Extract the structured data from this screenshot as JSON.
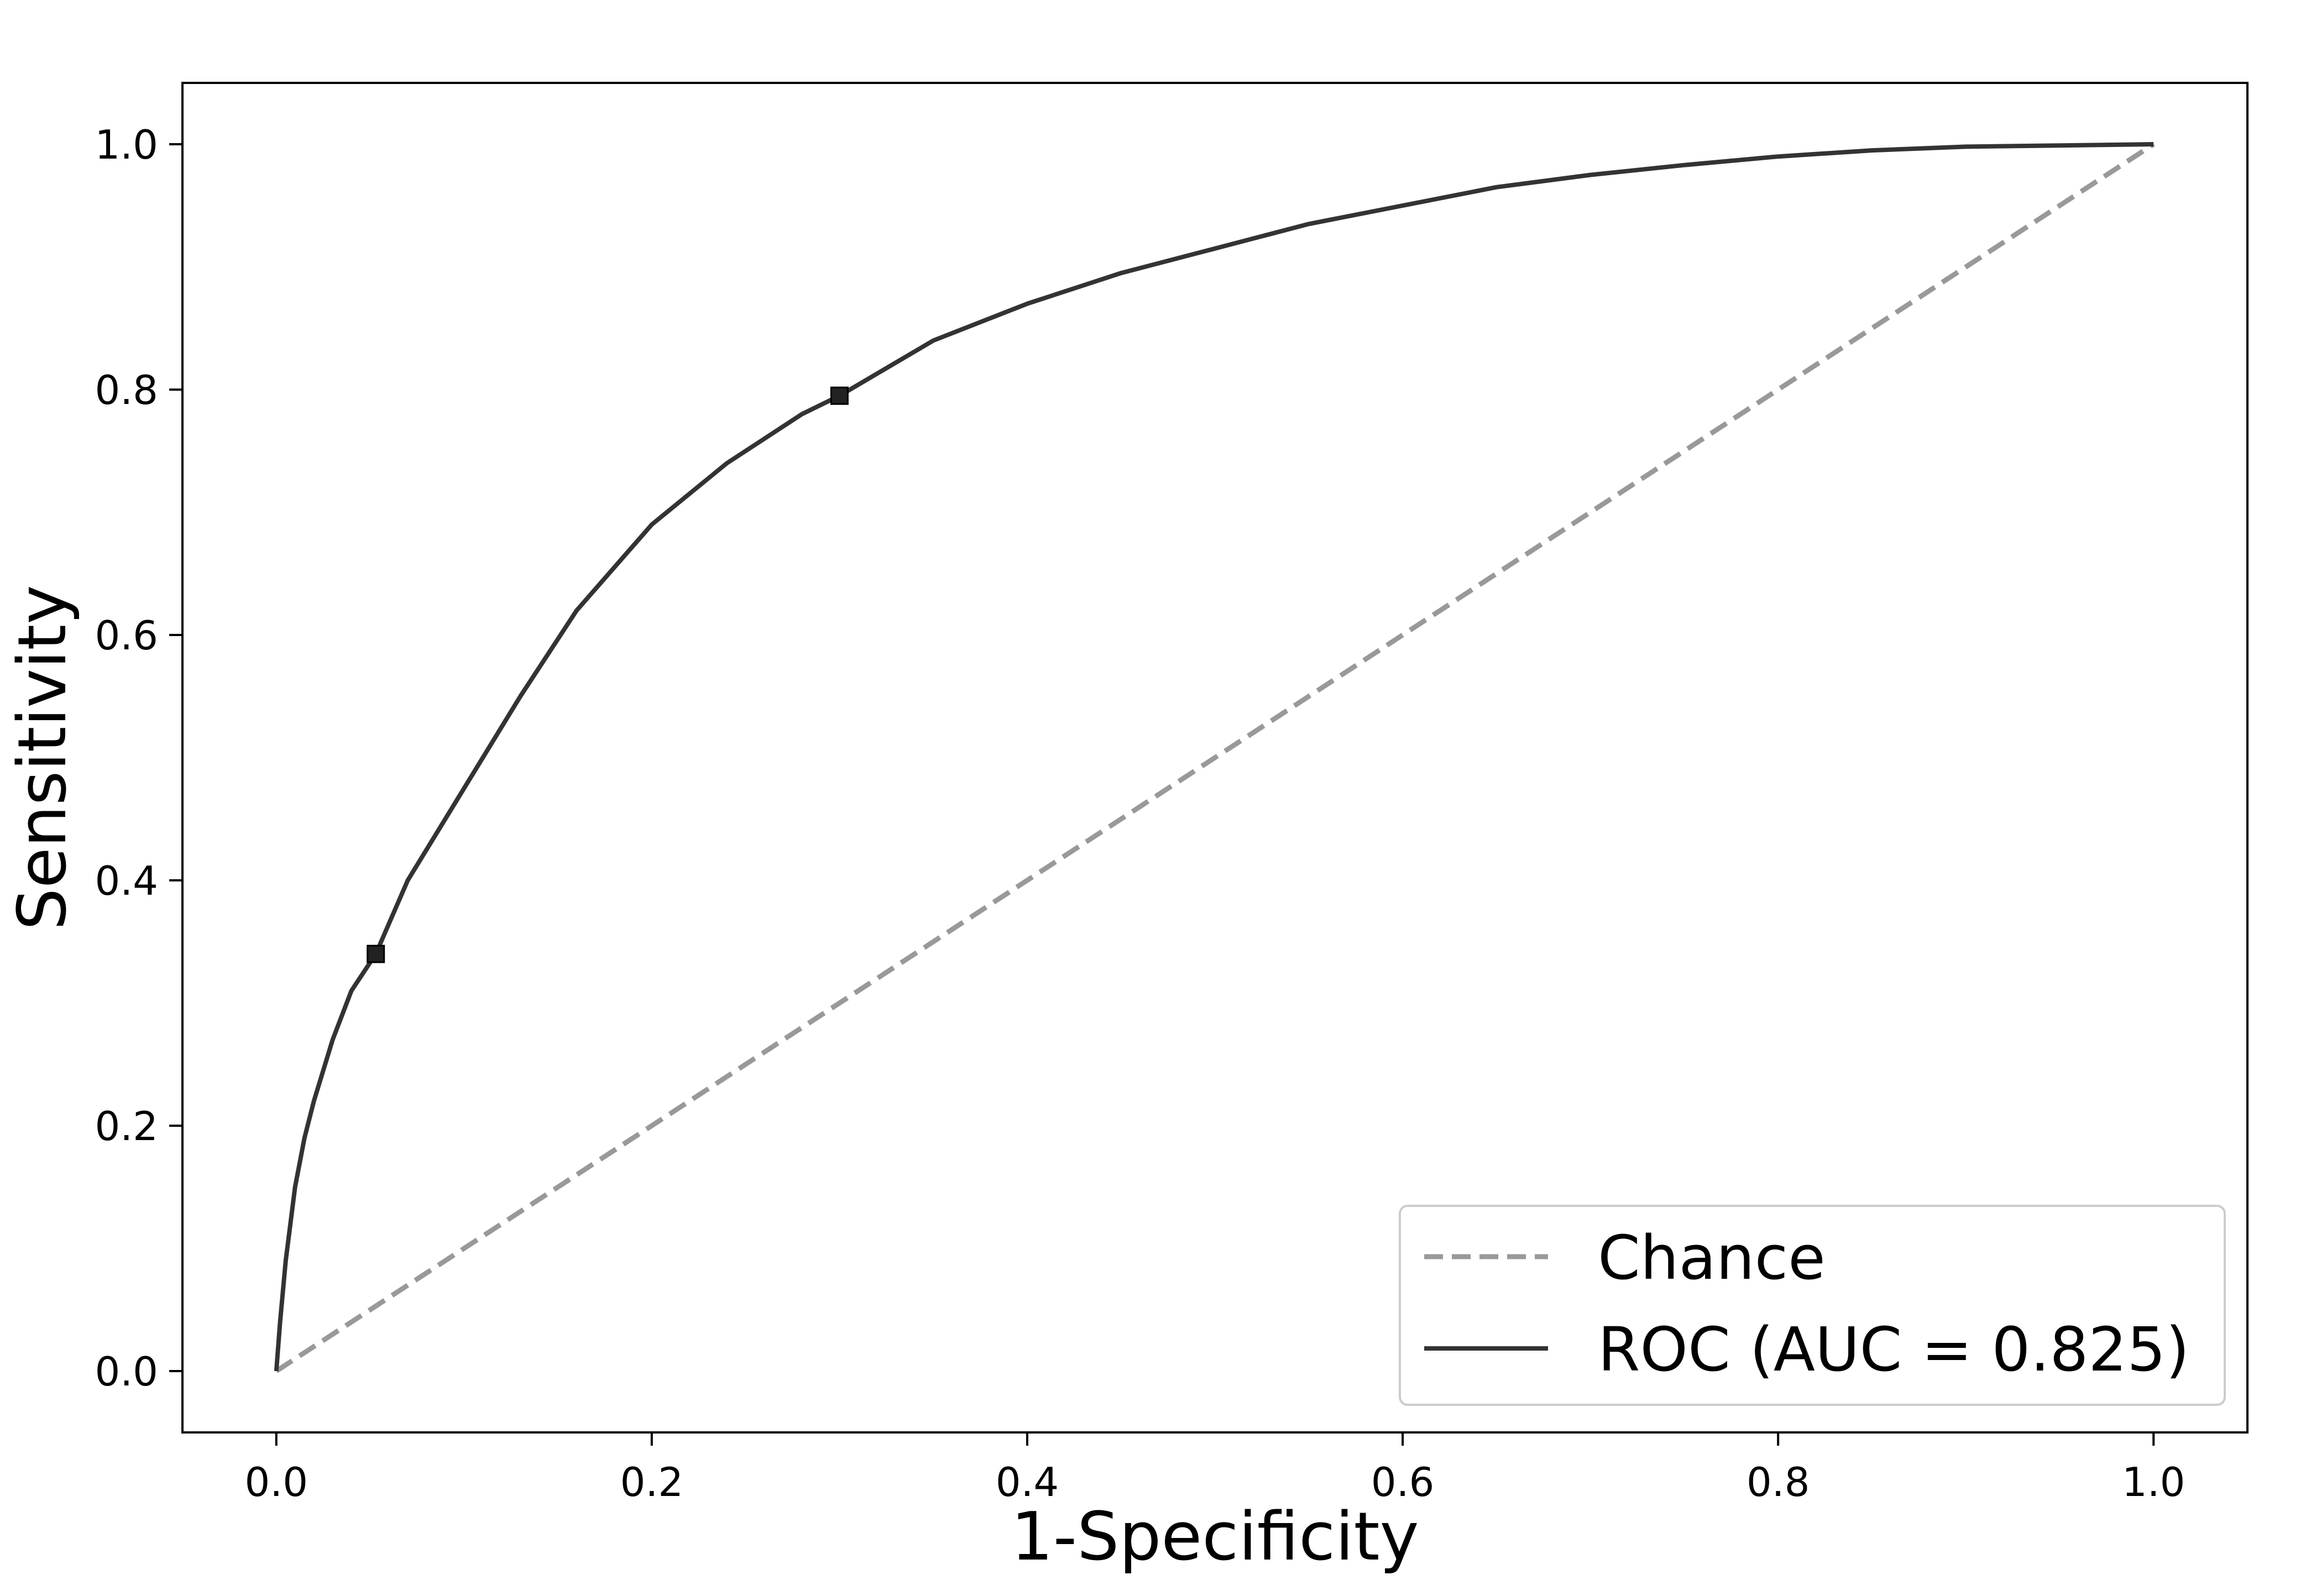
{
  "chart_data": {
    "type": "line",
    "title": "",
    "xlabel": "1-Specificity",
    "ylabel": "Sensitivity",
    "xlim": [
      -0.05,
      1.05
    ],
    "ylim": [
      -0.05,
      1.05
    ],
    "x_ticks": [
      0.0,
      0.2,
      0.4,
      0.6,
      0.8,
      1.0
    ],
    "y_ticks": [
      0.0,
      0.2,
      0.4,
      0.6,
      0.8,
      1.0
    ],
    "x_tick_labels": [
      "0.0",
      "0.2",
      "0.4",
      "0.6",
      "0.8",
      "1.0"
    ],
    "y_tick_labels": [
      "0.0",
      "0.2",
      "0.4",
      "0.6",
      "0.8",
      "1.0"
    ],
    "grid": false,
    "legend_position": "bottom-right",
    "series": [
      {
        "name": "Chance",
        "style": "dashed",
        "color": "#999999",
        "x": [
          0.0,
          1.0
        ],
        "y": [
          0.0,
          1.0
        ]
      },
      {
        "name": "ROC (AUC = 0.825)",
        "style": "solid",
        "color": "#333333",
        "x": [
          0.0,
          0.002,
          0.005,
          0.01,
          0.015,
          0.02,
          0.03,
          0.04,
          0.053,
          0.07,
          0.09,
          0.11,
          0.13,
          0.16,
          0.2,
          0.24,
          0.28,
          0.3,
          0.35,
          0.4,
          0.45,
          0.5,
          0.55,
          0.6,
          0.65,
          0.7,
          0.75,
          0.8,
          0.85,
          0.9,
          0.95,
          1.0
        ],
        "y": [
          0.0,
          0.04,
          0.09,
          0.15,
          0.19,
          0.22,
          0.27,
          0.31,
          0.34,
          0.4,
          0.45,
          0.5,
          0.55,
          0.62,
          0.69,
          0.74,
          0.78,
          0.795,
          0.84,
          0.87,
          0.895,
          0.915,
          0.935,
          0.95,
          0.965,
          0.975,
          0.983,
          0.99,
          0.995,
          0.998,
          0.999,
          1.0
        ]
      }
    ],
    "markers": {
      "shape": "square",
      "color": "#222222",
      "points": [
        {
          "x": 0.053,
          "y": 0.34
        },
        {
          "x": 0.3,
          "y": 0.795
        }
      ]
    },
    "axes_color": "#000000"
  }
}
